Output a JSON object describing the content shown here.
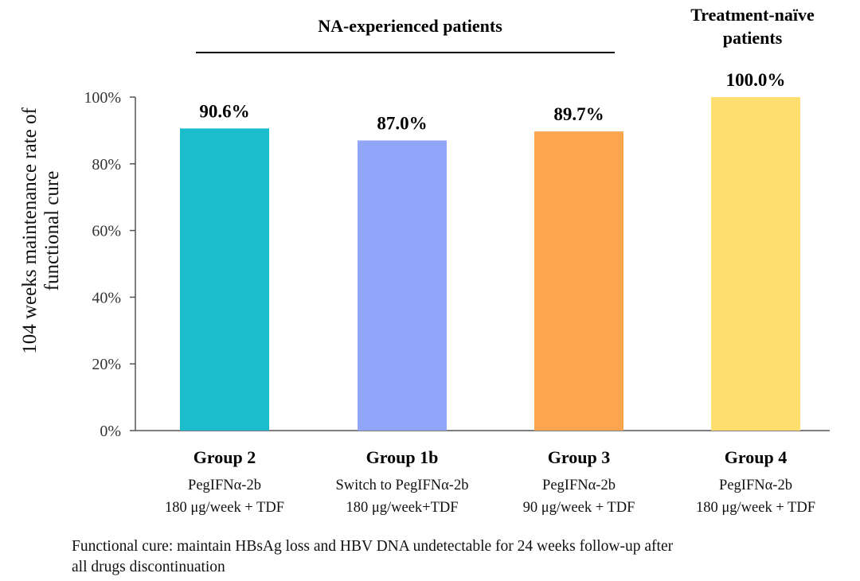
{
  "chart_data": {
    "type": "bar",
    "ylabel": [
      "104 weeks maintenance rate of",
      "functional cure"
    ],
    "ylim": [
      0,
      100
    ],
    "yticks": [
      0,
      20,
      40,
      60,
      80,
      100
    ],
    "ytick_labels": [
      "0%",
      "20%",
      "40%",
      "60%",
      "80%",
      "100%"
    ],
    "grid": false,
    "categories": [
      {
        "name": "Group 2",
        "sub1": "PegIFNα-2b",
        "sub2": "180 μg/week + TDF"
      },
      {
        "name": "Group 1b",
        "sub1": "Switch to PegIFNα-2b",
        "sub2": "180 μg/week+TDF"
      },
      {
        "name": "Group 3",
        "sub1": "PegIFNα-2b",
        "sub2": "90 μg/week + TDF"
      },
      {
        "name": "Group 4",
        "sub1": "PegIFNα-2b",
        "sub2": "180 μg/week + TDF"
      }
    ],
    "values": [
      90.6,
      87.0,
      89.7,
      100.0
    ],
    "value_labels": [
      "90.6%",
      "87.0%",
      "89.7%",
      "100.0%"
    ],
    "colors": [
      "#1bbccc",
      "#92a6f9",
      "#fba551",
      "#fede6f"
    ],
    "group_headers": [
      {
        "text": [
          "NA-experienced patients"
        ],
        "covers": [
          0,
          1,
          2
        ]
      },
      {
        "text": [
          "Treatment-naïve",
          "patients"
        ],
        "covers": [
          3
        ]
      }
    ]
  },
  "footnote": [
    "Functional cure: maintain HBsAg loss and HBV DNA undetectable for 24 weeks follow-up after",
    "all drugs discontinuation"
  ]
}
